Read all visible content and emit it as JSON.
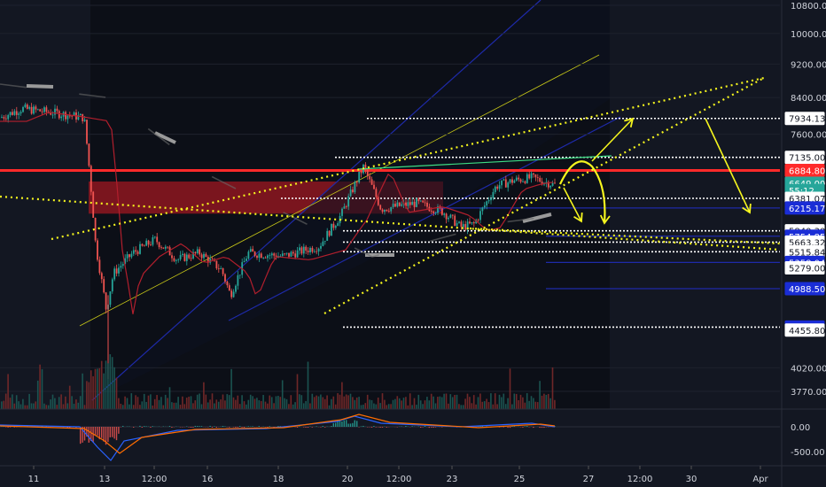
{
  "chart_data": {
    "type": "candlestick",
    "price_axis": {
      "scale": "log",
      "ylim": [
        3500,
        11500
      ],
      "ticks": [
        {
          "label": "10800.00",
          "value": 10800
        },
        {
          "label": "10000.00",
          "value": 10000
        },
        {
          "label": "9200.00",
          "value": 9200
        },
        {
          "label": "8400.00",
          "value": 8400
        },
        {
          "label": "7600.00",
          "value": 7600
        },
        {
          "label": "4020.00",
          "value": 4020
        },
        {
          "label": "3770.00",
          "value": 3770
        }
      ],
      "level_labels": [
        {
          "label": "7934.13",
          "value": 7934.13,
          "style": "white"
        },
        {
          "label": "7135.00",
          "value": 7135,
          "style": "white"
        },
        {
          "label": "6884.80",
          "value": 6884.8,
          "style": "red"
        },
        {
          "label": "6649.00",
          "value": 6649,
          "style": "teal"
        },
        {
          "label": "55:12",
          "value": 6520,
          "style": "teal"
        },
        {
          "label": "6381.07",
          "value": 6381.07,
          "style": "white"
        },
        {
          "label": "6215.17",
          "value": 6215.17,
          "style": "blue"
        },
        {
          "label": "5840.30",
          "value": 5840.3,
          "style": "white"
        },
        {
          "label": "5754.85",
          "value": 5754.85,
          "style": "blue"
        },
        {
          "label": "5663.32",
          "value": 5663.32,
          "style": "white"
        },
        {
          "label": "5515.84",
          "value": 5515.84,
          "style": "white"
        },
        {
          "label": "5358.04",
          "value": 5358.04,
          "style": "blue"
        },
        {
          "label": "5279.00",
          "value": 5279,
          "style": "white"
        },
        {
          "label": "4988.50",
          "value": 4988.5,
          "style": "blue"
        },
        {
          "label": "4492.26",
          "value": 4492.26,
          "style": "blue"
        },
        {
          "label": "4455.80",
          "value": 4455.8,
          "style": "white"
        }
      ]
    },
    "time_axis": {
      "ticks": [
        "11",
        "13",
        "12:00",
        "16",
        "18",
        "20",
        "12:00",
        "23",
        "25",
        "27",
        "12:00",
        "30",
        "Apr"
      ]
    },
    "oscillator": {
      "ticks": [
        {
          "label": "0.00",
          "value": 0
        },
        {
          "label": "-500.00",
          "value": -500
        }
      ],
      "ylim": [
        -700,
        350
      ]
    },
    "horizontal_levels": [
      {
        "value": 7934.13,
        "color": "#ffffff",
        "style": "dotted",
        "x_from_frac": 0.47
      },
      {
        "value": 7135,
        "color": "#ffffff",
        "style": "dotted",
        "x_from_frac": 0.43
      },
      {
        "value": 6884.8,
        "color": "#ff2a2a",
        "style": "solid",
        "x_from_frac": 0
      },
      {
        "value": 6381.07,
        "color": "#ffffff",
        "style": "dotted",
        "x_from_frac": 0.36
      },
      {
        "value": 6215.17,
        "color": "#1e2aa8",
        "style": "solid",
        "x_from_frac": 0.56
      },
      {
        "value": 5840.3,
        "color": "#ffffff",
        "style": "dotted",
        "x_from_frac": 0.44
      },
      {
        "value": 5754.85,
        "color": "#1e2aa8",
        "style": "solid",
        "x_from_frac": 0.7
      },
      {
        "value": 5663.32,
        "color": "#ffffff",
        "style": "dotted",
        "x_from_frac": 0.44
      },
      {
        "value": 5515.84,
        "color": "#ffffff",
        "style": "dotted",
        "x_from_frac": 0.44
      },
      {
        "value": 5358.04,
        "color": "#1e2aa8",
        "style": "solid",
        "x_from_frac": 0.7
      },
      {
        "value": 4988.5,
        "color": "#1e2aa8",
        "style": "solid",
        "x_from_frac": 0.7
      },
      {
        "value": 4492.26,
        "color": "#ffffff",
        "style": "dotted",
        "x_from_frac": 0.44
      }
    ],
    "colors": {
      "background": "#131722",
      "up": "#26a69a",
      "down": "#ef5350",
      "resistance": "#ff2a2a",
      "trend_yellow": "#f5f51e",
      "channel_blue": "#1e2aa8",
      "axis_text": "#d1d4dc"
    }
  }
}
